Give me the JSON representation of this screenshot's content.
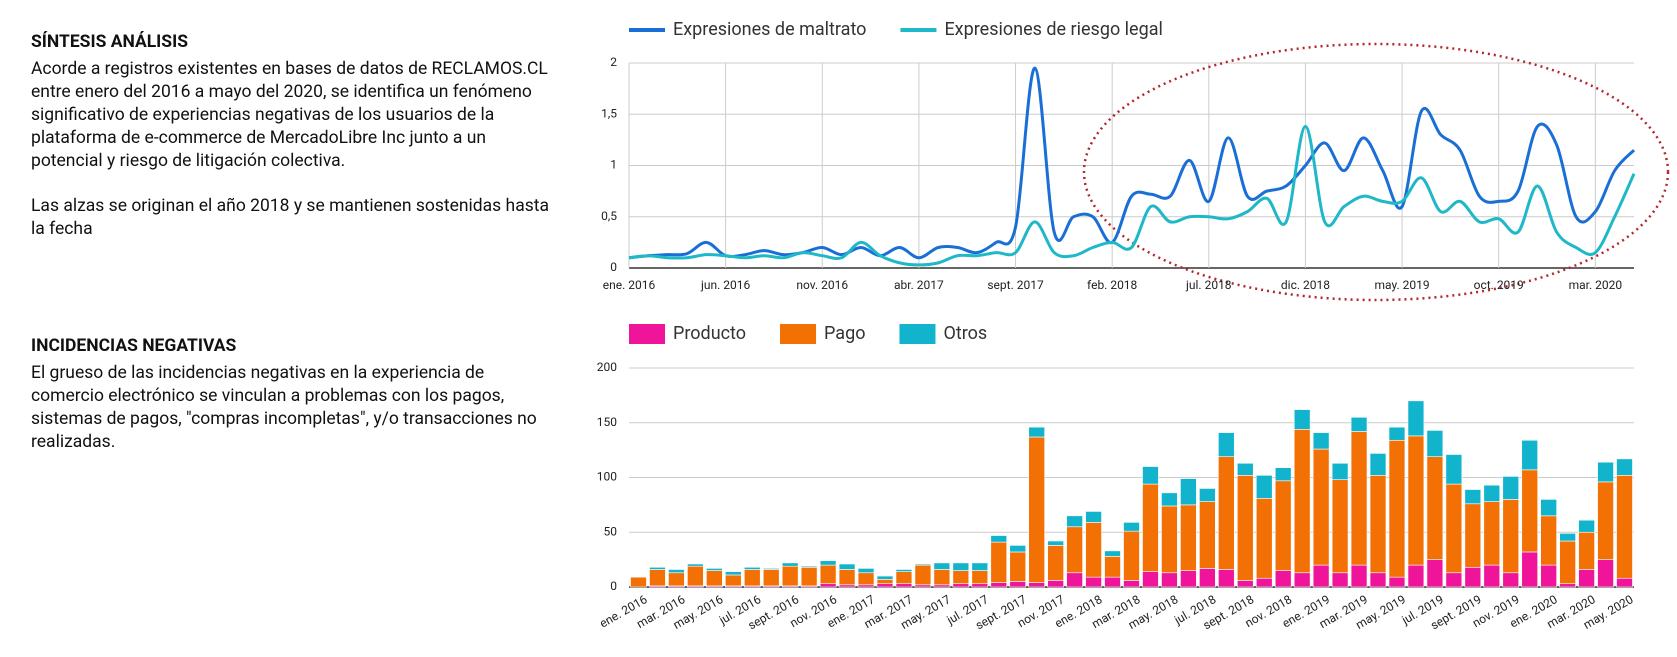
{
  "sections": [
    {
      "title": "SÍNTESIS ANÁLISIS",
      "paragraphs": [
        "Acorde a registros existentes en bases de datos de RECLAMOS.CL entre enero del 2016 a mayo del 2020, se identifica un fenómeno significativo de experiencias negativas de los usuarios de la plataforma de e-commerce de MercadoLibre Inc junto a un potencial y riesgo de litigación colectiva.",
        "Las alzas se originan el año 2018 y se mantienen sostenidas hasta la fecha"
      ]
    },
    {
      "title": "INCIDENCIAS NEGATIVAS",
      "paragraphs": [
        "El grueso de las incidencias negativas en la experiencia de comercio electrónico se vinculan a problemas con los pagos, sistemas de pagos, \"compras incompletas\", y/o transacciones no realizadas."
      ]
    }
  ],
  "chart_data": [
    {
      "type": "line",
      "grid": true,
      "xgrid": true,
      "categories": [
        "ene. 2016",
        null,
        null,
        null,
        null,
        "jun. 2016",
        null,
        null,
        null,
        null,
        "nov. 2016",
        null,
        null,
        null,
        null,
        "abr. 2017",
        null,
        null,
        null,
        null,
        "sept. 2017",
        null,
        null,
        null,
        null,
        "feb. 2018",
        null,
        null,
        null,
        null,
        "jul. 2018",
        null,
        null,
        null,
        null,
        "dic. 2018",
        null,
        null,
        null,
        null,
        "may. 2019",
        null,
        null,
        null,
        null,
        "oct. 2019",
        null,
        null,
        null,
        null,
        "mar. 2020",
        null,
        null
      ],
      "series": [
        {
          "name": "Expresiones de maltrato",
          "color": "#1a6fd6",
          "values": [
            0.1,
            0.12,
            0.13,
            0.14,
            0.25,
            0.12,
            0.13,
            0.17,
            0.13,
            0.15,
            0.2,
            0.13,
            0.2,
            0.12,
            0.2,
            0.1,
            0.2,
            0.2,
            0.15,
            0.25,
            0.4,
            1.95,
            0.35,
            0.5,
            0.5,
            0.25,
            0.7,
            0.72,
            0.7,
            1.05,
            0.65,
            1.27,
            0.7,
            0.75,
            0.8,
            1.0,
            1.22,
            0.95,
            1.27,
            0.95,
            0.6,
            1.53,
            1.3,
            1.15,
            0.7,
            0.65,
            0.75,
            1.38,
            1.2,
            0.5,
            0.55,
            0.95,
            1.15
          ]
        },
        {
          "name": "Expresiones de riesgo legal",
          "color": "#1fb8c8",
          "values": [
            0.1,
            0.12,
            0.1,
            0.1,
            0.13,
            0.12,
            0.1,
            0.12,
            0.1,
            0.15,
            0.12,
            0.1,
            0.25,
            0.12,
            0.05,
            0.03,
            0.05,
            0.12,
            0.12,
            0.15,
            0.15,
            0.45,
            0.15,
            0.12,
            0.2,
            0.25,
            0.2,
            0.6,
            0.45,
            0.5,
            0.5,
            0.48,
            0.55,
            0.68,
            0.45,
            1.38,
            0.45,
            0.6,
            0.7,
            0.65,
            0.65,
            0.88,
            0.55,
            0.65,
            0.45,
            0.48,
            0.35,
            0.8,
            0.35,
            0.2,
            0.15,
            0.5,
            0.92
          ]
        }
      ],
      "ylim": [
        0,
        2
      ],
      "yticks": [
        0,
        {
          "value": 0.5,
          "label": "0,5"
        },
        1,
        {
          "value": 1.5,
          "label": "1,5"
        },
        2
      ]
    },
    {
      "type": "stacked_bar",
      "grid": true,
      "categories": [
        "ene. 2016",
        null,
        "mar. 2016",
        null,
        "may. 2016",
        null,
        "jul. 2016",
        null,
        "sept. 2016",
        null,
        "nov. 2016",
        null,
        "ene. 2017",
        null,
        "mar. 2017",
        null,
        "may. 2017",
        null,
        "jul. 2017",
        null,
        "sept. 2017",
        null,
        "nov. 2017",
        null,
        "ene. 2018",
        null,
        "mar. 2018",
        null,
        "may. 2018",
        null,
        "jul. 2018",
        null,
        "sept. 2018",
        null,
        "nov. 2018",
        null,
        "ene. 2019",
        null,
        "mar. 2019",
        null,
        "may. 2019",
        null,
        "jul. 2019",
        null,
        "sept. 2019",
        null,
        "nov. 2019",
        null,
        "ene. 2020",
        null,
        "mar. 2020",
        null,
        "may. 2020"
      ],
      "series": [
        {
          "name": "Producto",
          "color": "#f0149b",
          "values": [
            0,
            1,
            1,
            1,
            1,
            1,
            1,
            1,
            1,
            1,
            3,
            2,
            2,
            3,
            3,
            2,
            2,
            3,
            3,
            4,
            5,
            4,
            6,
            13,
            9,
            9,
            6,
            14,
            13,
            15,
            17,
            16,
            6,
            8,
            15,
            13,
            20,
            13,
            20,
            13,
            9,
            20,
            25,
            13,
            18,
            20,
            13,
            32,
            20,
            3,
            16,
            25,
            8
          ]
        },
        {
          "name": "Pago",
          "color": "#f37005",
          "values": [
            9,
            15,
            12,
            18,
            14,
            10,
            15,
            15,
            18,
            17,
            17,
            14,
            11,
            4,
            11,
            18,
            14,
            12,
            12,
            37,
            27,
            133,
            32,
            42,
            50,
            19,
            45,
            80,
            61,
            60,
            61,
            103,
            96,
            73,
            82,
            131,
            106,
            85,
            122,
            89,
            125,
            118,
            94,
            81,
            58,
            58,
            67,
            75,
            45,
            39,
            34,
            71,
            94
          ]
        },
        {
          "name": "Otros",
          "color": "#11b4cc",
          "values": [
            0,
            2,
            3,
            2,
            2,
            3,
            2,
            1,
            3,
            1,
            4,
            5,
            4,
            3,
            2,
            1,
            6,
            7,
            7,
            6,
            6,
            9,
            4,
            10,
            10,
            5,
            8,
            16,
            12,
            24,
            12,
            22,
            11,
            21,
            12,
            18,
            15,
            15,
            13,
            20,
            12,
            32,
            24,
            27,
            13,
            15,
            21,
            27,
            15,
            7,
            11,
            18,
            15
          ]
        }
      ],
      "ylim": [
        0,
        200
      ],
      "yticks": [
        0,
        50,
        100,
        150,
        200
      ]
    }
  ]
}
